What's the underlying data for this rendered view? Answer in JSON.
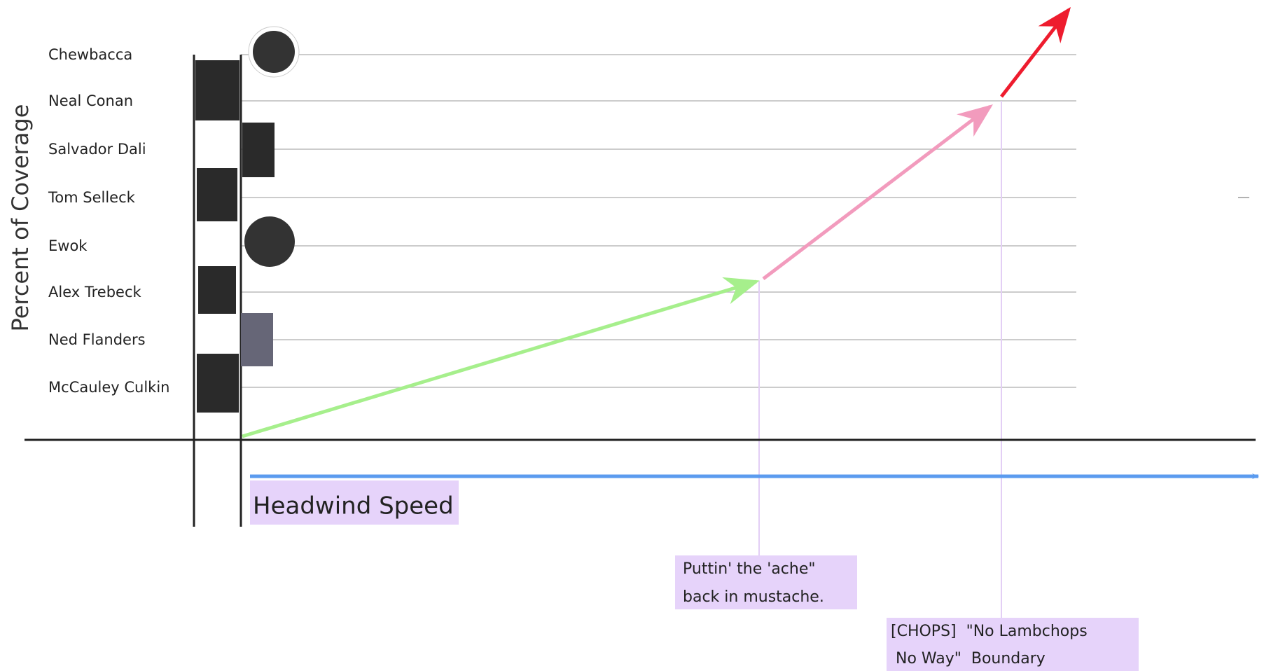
{
  "y_axis_label": "Percent of Coverage",
  "rows": [
    "Chewbacca",
    "Neal Conan",
    "Salvador Dali",
    "Tom Selleck",
    "Ewok",
    "Alex Trebeck",
    "Ned Flanders",
    "McCauley Culkin"
  ],
  "x_axis_label": "Headwind Speed",
  "annotations": [
    {
      "lines": [
        "Puttin' the 'ache\"",
        "back in mustache."
      ]
    },
    {
      "lines": [
        "[CHOPS]  \"No Lambchops",
        " No Way\"  Boundary"
      ]
    }
  ]
}
